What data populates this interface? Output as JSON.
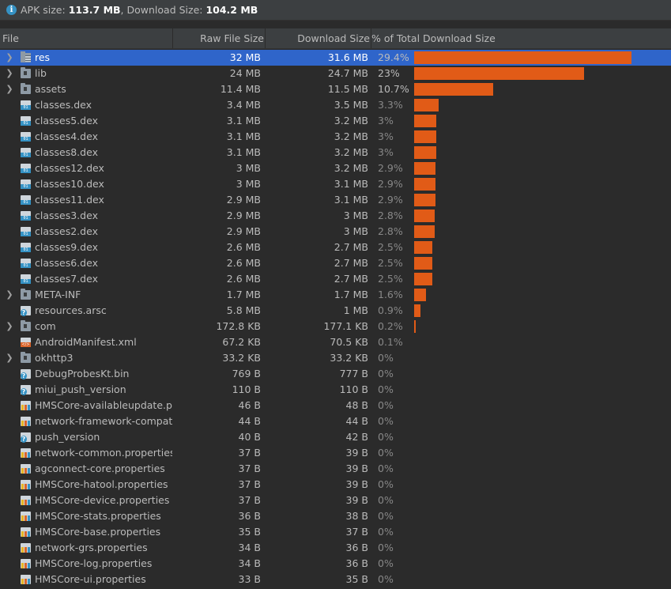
{
  "info": {
    "apk_label": "APK size: ",
    "apk_value": "113.7 MB",
    "sep": ", Download Size: ",
    "download_value": "104.2 MB"
  },
  "columns": {
    "file": "File",
    "raw": "Raw File Size",
    "download": "Download Size",
    "percent": "% of Total Download Size"
  },
  "colors": {
    "bar": "#e15b17",
    "selection": "#2f65ca",
    "background": "#2b2b2b"
  },
  "rows": [
    {
      "name": "res",
      "raw": "32 MB",
      "dl": "31.6 MB",
      "pct": "29.4%",
      "frac": 0.294,
      "icon": "res-folder-icon",
      "expandable": true,
      "selected": true
    },
    {
      "name": "lib",
      "raw": "24 MB",
      "dl": "24.7 MB",
      "pct": "23%",
      "frac": 0.23,
      "icon": "folder-icon",
      "expandable": true
    },
    {
      "name": "assets",
      "raw": "11.4 MB",
      "dl": "11.5 MB",
      "pct": "10.7%",
      "frac": 0.107,
      "icon": "folder-icon",
      "expandable": true
    },
    {
      "name": "classes.dex",
      "raw": "3.4 MB",
      "dl": "3.5 MB",
      "pct": "3.3%",
      "frac": 0.033,
      "icon": "dex-file-icon"
    },
    {
      "name": "classes5.dex",
      "raw": "3.1 MB",
      "dl": "3.2 MB",
      "pct": "3%",
      "frac": 0.03,
      "icon": "dex-file-icon"
    },
    {
      "name": "classes4.dex",
      "raw": "3.1 MB",
      "dl": "3.2 MB",
      "pct": "3%",
      "frac": 0.03,
      "icon": "dex-file-icon"
    },
    {
      "name": "classes8.dex",
      "raw": "3.1 MB",
      "dl": "3.2 MB",
      "pct": "3%",
      "frac": 0.03,
      "icon": "dex-file-icon"
    },
    {
      "name": "classes12.dex",
      "raw": "3 MB",
      "dl": "3.2 MB",
      "pct": "2.9%",
      "frac": 0.029,
      "icon": "dex-file-icon"
    },
    {
      "name": "classes10.dex",
      "raw": "3 MB",
      "dl": "3.1 MB",
      "pct": "2.9%",
      "frac": 0.029,
      "icon": "dex-file-icon"
    },
    {
      "name": "classes11.dex",
      "raw": "2.9 MB",
      "dl": "3.1 MB",
      "pct": "2.9%",
      "frac": 0.029,
      "icon": "dex-file-icon"
    },
    {
      "name": "classes3.dex",
      "raw": "2.9 MB",
      "dl": "3 MB",
      "pct": "2.8%",
      "frac": 0.028,
      "icon": "dex-file-icon"
    },
    {
      "name": "classes2.dex",
      "raw": "2.9 MB",
      "dl": "3 MB",
      "pct": "2.8%",
      "frac": 0.028,
      "icon": "dex-file-icon"
    },
    {
      "name": "classes9.dex",
      "raw": "2.6 MB",
      "dl": "2.7 MB",
      "pct": "2.5%",
      "frac": 0.025,
      "icon": "dex-file-icon"
    },
    {
      "name": "classes6.dex",
      "raw": "2.6 MB",
      "dl": "2.7 MB",
      "pct": "2.5%",
      "frac": 0.025,
      "icon": "dex-file-icon"
    },
    {
      "name": "classes7.dex",
      "raw": "2.6 MB",
      "dl": "2.7 MB",
      "pct": "2.5%",
      "frac": 0.025,
      "icon": "dex-file-icon"
    },
    {
      "name": "META-INF",
      "raw": "1.7 MB",
      "dl": "1.7 MB",
      "pct": "1.6%",
      "frac": 0.016,
      "icon": "folder-icon",
      "expandable": true
    },
    {
      "name": "resources.arsc",
      "raw": "5.8 MB",
      "dl": "1 MB",
      "pct": "0.9%",
      "frac": 0.009,
      "icon": "unknown-file-icon"
    },
    {
      "name": "com",
      "raw": "172.8 KB",
      "dl": "177.1 KB",
      "pct": "0.2%",
      "frac": 0.002,
      "icon": "folder-icon",
      "expandable": true
    },
    {
      "name": "AndroidManifest.xml",
      "raw": "67.2 KB",
      "dl": "70.5 KB",
      "pct": "0.1%",
      "frac": 0,
      "icon": "xml-file-icon"
    },
    {
      "name": "okhttp3",
      "raw": "33.2 KB",
      "dl": "33.2 KB",
      "pct": "0%",
      "frac": 0,
      "icon": "folder-icon",
      "expandable": true
    },
    {
      "name": "DebugProbesKt.bin",
      "raw": "769 B",
      "dl": "777 B",
      "pct": "0%",
      "frac": 0,
      "icon": "unknown-file-icon"
    },
    {
      "name": "miui_push_version",
      "raw": "110 B",
      "dl": "110 B",
      "pct": "0%",
      "frac": 0,
      "icon": "unknown-file-icon"
    },
    {
      "name": "HMSCore-availableupdate.properties",
      "raw": "46 B",
      "dl": "48 B",
      "pct": "0%",
      "frac": 0,
      "icon": "properties-file-icon"
    },
    {
      "name": "network-framework-compat.properties",
      "raw": "44 B",
      "dl": "44 B",
      "pct": "0%",
      "frac": 0,
      "icon": "properties-file-icon"
    },
    {
      "name": "push_version",
      "raw": "40 B",
      "dl": "42 B",
      "pct": "0%",
      "frac": 0,
      "icon": "unknown-file-icon"
    },
    {
      "name": "network-common.properties",
      "raw": "37 B",
      "dl": "39 B",
      "pct": "0%",
      "frac": 0,
      "icon": "properties-file-icon"
    },
    {
      "name": "agconnect-core.properties",
      "raw": "37 B",
      "dl": "39 B",
      "pct": "0%",
      "frac": 0,
      "icon": "properties-file-icon"
    },
    {
      "name": "HMSCore-hatool.properties",
      "raw": "37 B",
      "dl": "39 B",
      "pct": "0%",
      "frac": 0,
      "icon": "properties-file-icon"
    },
    {
      "name": "HMSCore-device.properties",
      "raw": "37 B",
      "dl": "39 B",
      "pct": "0%",
      "frac": 0,
      "icon": "properties-file-icon"
    },
    {
      "name": "HMSCore-stats.properties",
      "raw": "36 B",
      "dl": "38 B",
      "pct": "0%",
      "frac": 0,
      "icon": "properties-file-icon"
    },
    {
      "name": "HMSCore-base.properties",
      "raw": "35 B",
      "dl": "37 B",
      "pct": "0%",
      "frac": 0,
      "icon": "properties-file-icon"
    },
    {
      "name": "network-grs.properties",
      "raw": "34 B",
      "dl": "36 B",
      "pct": "0%",
      "frac": 0,
      "icon": "properties-file-icon"
    },
    {
      "name": "HMSCore-log.properties",
      "raw": "34 B",
      "dl": "36 B",
      "pct": "0%",
      "frac": 0,
      "icon": "properties-file-icon"
    },
    {
      "name": "HMSCore-ui.properties",
      "raw": "33 B",
      "dl": "35 B",
      "pct": "0%",
      "frac": 0,
      "icon": "properties-file-icon"
    }
  ]
}
